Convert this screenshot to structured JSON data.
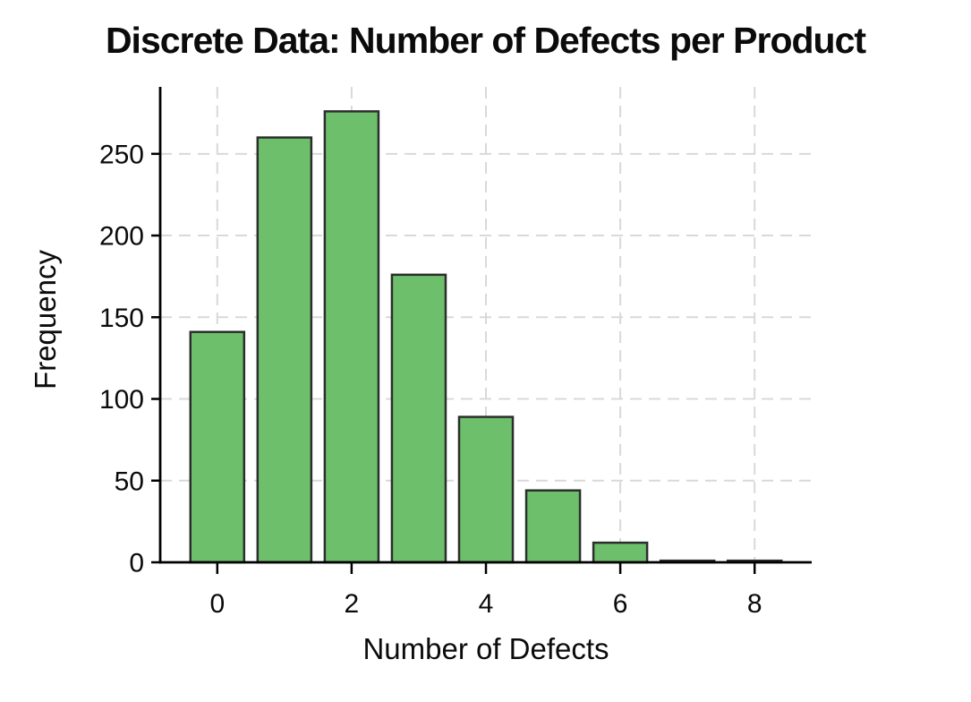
{
  "chart_data": {
    "type": "bar",
    "title": "Discrete Data: Number of Defects per Product",
    "xlabel": "Number of Defects",
    "ylabel": "Frequency",
    "categories": [
      0,
      1,
      2,
      3,
      4,
      5,
      6,
      7,
      8
    ],
    "values": [
      141,
      260,
      276,
      176,
      89,
      44,
      12,
      1,
      1
    ],
    "x_ticks": [
      0,
      2,
      4,
      6,
      8
    ],
    "y_ticks": [
      0,
      50,
      100,
      150,
      200,
      250
    ],
    "xlim": [
      -0.85,
      8.85
    ],
    "ylim": [
      0,
      291
    ],
    "bar_width": 0.8,
    "grid": "both-dashed",
    "legend": "none",
    "colors": {
      "bar_fill": "#6dbf6b",
      "bar_edge": "#2b2f2c",
      "grid": "#d9d9d9",
      "axis": "#000000",
      "text": "#0b0b0b",
      "background": "#ffffff"
    }
  }
}
